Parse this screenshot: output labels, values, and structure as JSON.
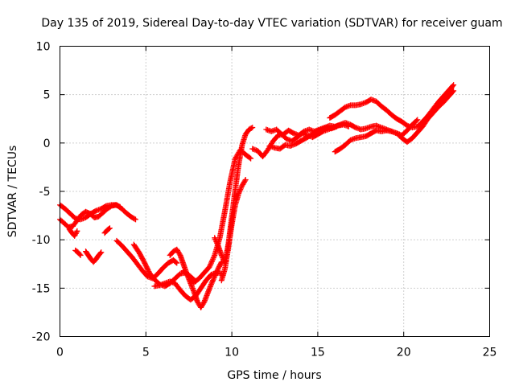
{
  "chart_data": {
    "type": "scatter",
    "title": "Day 135 of 2019, Sidereal Day-to-day VTEC variation (SDTVAR) for receiver guam",
    "xlabel": "GPS time / hours",
    "ylabel": "SDTVAR / TECUs",
    "xlim": [
      0,
      25
    ],
    "ylim": [
      -20,
      10
    ],
    "x_ticks": [
      "0",
      "5",
      "10",
      "15",
      "20",
      "25"
    ],
    "y_ticks": [
      "10",
      "5",
      "0",
      "-5",
      "-10",
      "-15",
      "-20"
    ],
    "grid": true,
    "marker": "+",
    "color": "#ff0000",
    "series": [
      {
        "x": [
          0.0,
          0.3,
          0.6,
          0.9,
          1.2,
          1.5,
          1.8,
          2.1,
          2.4,
          2.7,
          3.0,
          3.3,
          3.6,
          3.9,
          4.2,
          4.4
        ],
        "values": [
          -6.4,
          -6.8,
          -7.3,
          -7.8,
          -7.9,
          -7.7,
          -7.3,
          -7.0,
          -6.8,
          -6.5,
          -6.4,
          -6.4,
          -6.8,
          -7.3,
          -7.7,
          -7.9
        ]
      },
      {
        "x": [
          0.0,
          0.25,
          0.5,
          0.75,
          1.0,
          1.25,
          1.5,
          1.75,
          2.0,
          2.25,
          2.5,
          2.75,
          3.0,
          3.25,
          3.5
        ],
        "values": [
          -7.9,
          -8.3,
          -8.7,
          -8.6,
          -8.0,
          -7.4,
          -7.1,
          -7.3,
          -7.7,
          -7.6,
          -7.2,
          -6.8,
          -6.5,
          -6.4,
          -6.6
        ]
      },
      {
        "x": [
          0.55,
          0.7,
          0.85,
          1.0
        ],
        "values": [
          -8.9,
          -9.3,
          -9.6,
          -9.1
        ]
      },
      {
        "x": [
          1.5,
          1.65,
          1.8,
          1.95,
          2.1,
          2.25,
          2.4
        ],
        "values": [
          -11.2,
          -11.6,
          -12.0,
          -12.3,
          -12.0,
          -11.6,
          -11.3
        ]
      },
      {
        "x": [
          0.9,
          1.05,
          1.2
        ],
        "values": [
          -11.1,
          -11.3,
          -11.6
        ]
      },
      {
        "x": [
          2.6,
          2.75,
          2.9
        ],
        "values": [
          -9.3,
          -9.0,
          -8.8
        ]
      },
      {
        "x": [
          3.3,
          3.6,
          3.9,
          4.2,
          4.5,
          4.8,
          5.1,
          5.4,
          5.7,
          6.0,
          6.3,
          6.6,
          6.8
        ],
        "values": [
          -10.1,
          -10.6,
          -11.2,
          -11.8,
          -12.5,
          -13.2,
          -13.8,
          -14.0,
          -13.5,
          -12.9,
          -12.4,
          -12.1,
          -12.4
        ]
      },
      {
        "x": [
          4.3,
          4.6,
          4.9,
          5.2,
          5.5,
          5.8,
          6.1,
          6.4,
          6.7,
          7.0,
          7.3,
          7.6,
          7.9
        ],
        "values": [
          -10.5,
          -11.3,
          -12.3,
          -13.4,
          -14.1,
          -14.6,
          -14.8,
          -14.5,
          -14.0,
          -13.5,
          -13.4,
          -13.8,
          -14.3
        ]
      },
      {
        "x": [
          5.5,
          5.8,
          6.1,
          6.4,
          6.7,
          7.0,
          7.3,
          7.6,
          7.9,
          8.2,
          8.5,
          8.8,
          9.1,
          9.4
        ],
        "values": [
          -14.8,
          -14.7,
          -14.5,
          -14.3,
          -14.5,
          -15.2,
          -15.8,
          -16.2,
          -15.8,
          -15.0,
          -14.2,
          -13.6,
          -13.4,
          -13.5
        ]
      },
      {
        "x": [
          6.4,
          6.6,
          6.8,
          7.0,
          7.2,
          7.4,
          7.6,
          7.8,
          8.0,
          8.2,
          8.4,
          8.6,
          8.8,
          9.0,
          9.2,
          9.4
        ],
        "values": [
          -11.6,
          -11.2,
          -11.0,
          -11.6,
          -12.6,
          -13.6,
          -14.5,
          -15.4,
          -16.4,
          -17.0,
          -16.4,
          -15.5,
          -14.6,
          -13.8,
          -13.0,
          -12.3
        ]
      },
      {
        "x": [
          7.2,
          7.5,
          7.8,
          8.1,
          8.4,
          8.7,
          9.0,
          9.3,
          9.6,
          9.9,
          10.2,
          10.5,
          10.8,
          11.1
        ],
        "values": [
          -13.2,
          -13.8,
          -14.4,
          -14.0,
          -13.4,
          -12.8,
          -11.6,
          -9.8,
          -7.0,
          -4.0,
          -1.6,
          -0.7,
          -1.2,
          -1.6
        ]
      },
      {
        "x": [
          9.0,
          9.2,
          9.4,
          9.6,
          9.8,
          10.0,
          10.2,
          10.4,
          10.6,
          10.8,
          11.0,
          11.2
        ],
        "values": [
          -9.8,
          -10.6,
          -11.6,
          -12.4,
          -10.4,
          -7.6,
          -4.8,
          -2.2,
          -0.2,
          0.9,
          1.4,
          1.6
        ]
      },
      {
        "x": [
          9.4,
          9.6,
          9.8,
          10.0,
          10.2,
          10.4,
          10.6,
          10.8
        ],
        "values": [
          -14.2,
          -13.0,
          -10.8,
          -8.4,
          -6.4,
          -5.2,
          -4.4,
          -3.8
        ]
      },
      {
        "x": [
          11.2,
          11.5,
          11.8,
          12.1,
          12.4,
          12.7,
          13.0,
          13.3,
          13.6,
          13.9,
          14.2,
          14.5,
          14.8,
          15.1,
          15.4,
          15.7,
          16.0,
          16.3,
          16.6,
          16.9,
          17.2,
          17.5,
          17.8,
          18.1,
          18.4,
          18.7,
          19.0,
          19.3,
          19.6,
          19.9,
          20.2,
          20.5,
          20.8
        ],
        "values": [
          -0.6,
          -0.8,
          -1.4,
          -0.7,
          0.2,
          0.8,
          0.9,
          1.3,
          1.0,
          0.8,
          1.2,
          1.4,
          1.2,
          1.4,
          1.6,
          1.8,
          1.7,
          1.9,
          2.1,
          1.9,
          1.6,
          1.4,
          1.5,
          1.7,
          1.8,
          1.6,
          1.4,
          1.2,
          1.0,
          0.8,
          1.3,
          1.9,
          2.4
        ]
      },
      {
        "x": [
          12.0,
          12.3,
          12.6,
          12.9,
          13.2,
          13.5,
          13.8,
          14.1,
          14.4,
          14.7,
          15.0,
          15.3,
          15.6,
          15.9,
          16.2,
          16.5,
          16.8
        ],
        "values": [
          1.4,
          1.2,
          1.4,
          0.9,
          0.4,
          0.2,
          0.6,
          1.0,
          0.8,
          0.6,
          0.9,
          1.2,
          1.4,
          1.6,
          1.8,
          1.9,
          1.7
        ]
      },
      {
        "x": [
          12.2,
          12.5,
          12.8,
          13.1,
          13.4,
          13.7,
          14.0,
          14.3,
          14.6,
          14.9,
          15.2,
          15.5,
          15.8,
          16.1
        ],
        "values": [
          -0.3,
          -0.5,
          -0.6,
          -0.2,
          -0.3,
          -0.1,
          0.2,
          0.5,
          0.8,
          1.2,
          1.4,
          1.6,
          1.5,
          1.7
        ]
      },
      {
        "x": [
          16.0,
          16.3,
          16.6,
          16.9,
          17.2,
          17.5,
          17.8,
          18.1,
          18.4,
          18.7,
          19.0,
          19.3,
          19.6,
          19.9,
          20.2,
          20.5,
          20.8,
          21.1,
          21.4,
          21.7,
          22.0,
          22.3,
          22.6,
          22.9
        ],
        "values": [
          -0.9,
          -0.6,
          -0.2,
          0.3,
          0.5,
          0.6,
          0.7,
          1.0,
          1.3,
          1.2,
          1.3,
          1.2,
          1.0,
          0.5,
          0.1,
          0.5,
          1.1,
          1.7,
          2.5,
          3.1,
          3.7,
          4.2,
          4.8,
          5.4
        ]
      },
      {
        "x": [
          15.7,
          16.0,
          16.3,
          16.6,
          16.9,
          17.2,
          17.5,
          17.8,
          18.1,
          18.4,
          18.7,
          19.0,
          19.3,
          19.6,
          19.9,
          20.2,
          20.5,
          20.8,
          21.1,
          21.4,
          21.7,
          22.0,
          22.3,
          22.6,
          22.9
        ],
        "values": [
          2.6,
          2.9,
          3.3,
          3.7,
          3.9,
          3.9,
          4.0,
          4.2,
          4.5,
          4.3,
          3.8,
          3.4,
          2.9,
          2.5,
          2.2,
          1.8,
          1.6,
          1.7,
          2.2,
          2.8,
          3.5,
          4.2,
          4.8,
          5.4,
          6.0
        ]
      }
    ]
  }
}
